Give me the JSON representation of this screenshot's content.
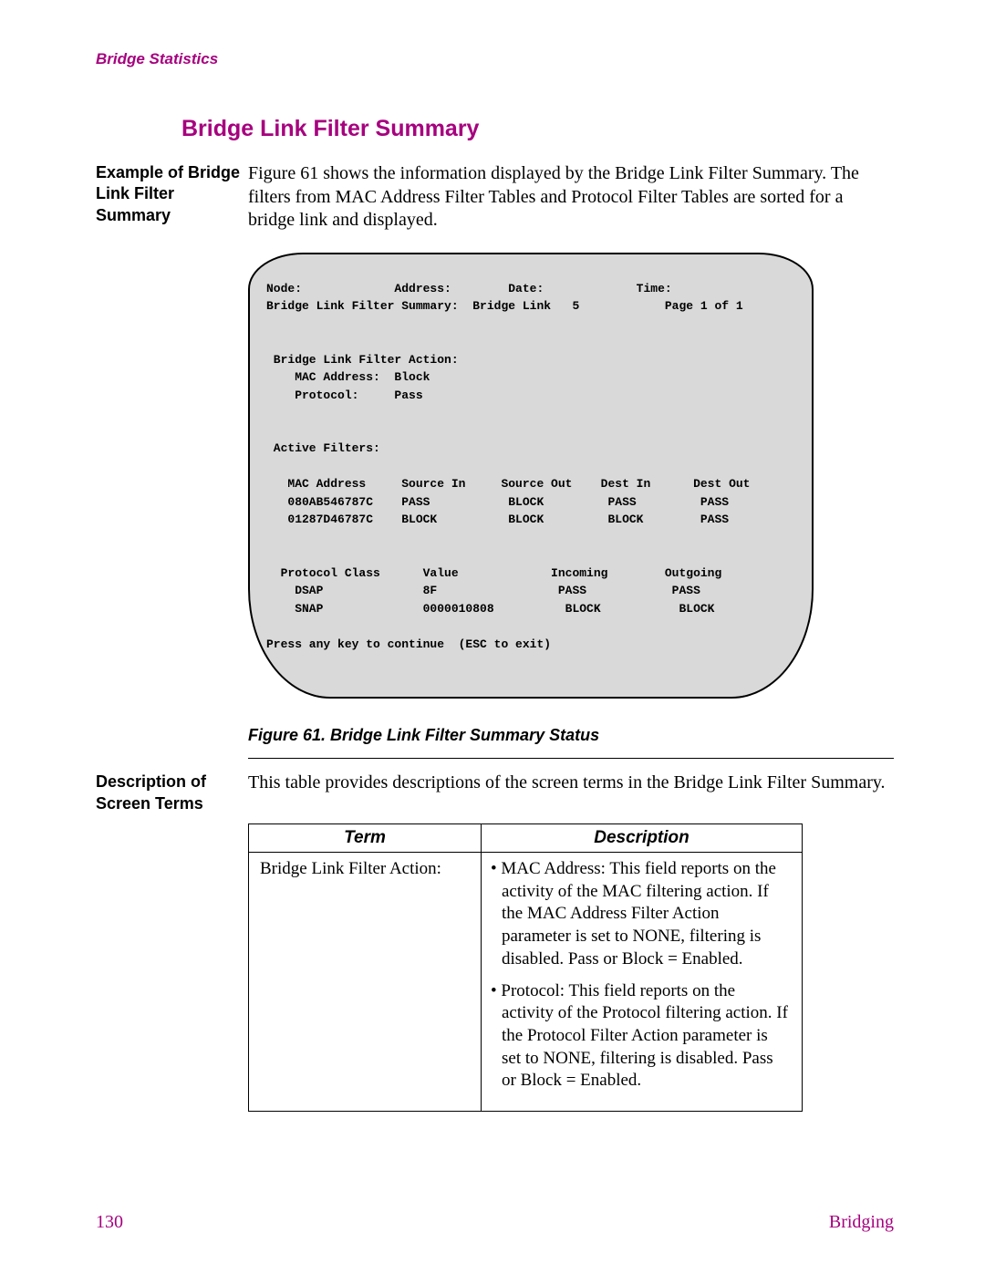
{
  "header": {
    "running_head": "Bridge Statistics"
  },
  "section": {
    "title": "Bridge Link Filter Summary"
  },
  "block1": {
    "label": "Example of Bridge Link Filter Summary",
    "text": "Figure 61 shows the information displayed by the Bridge Link Filter Summary. The filters from MAC Address Filter Tables and Protocol Filter Tables are sorted for a bridge link and displayed."
  },
  "terminal": {
    "text": "Node:             Address:        Date:             Time:\nBridge Link Filter Summary:  Bridge Link   5            Page 1 of 1\n\n\n Bridge Link Filter Action:\n    MAC Address:  Block\n    Protocol:     Pass\n\n\n Active Filters:\n\n   MAC Address     Source In     Source Out    Dest In      Dest Out\n   080AB546787C    PASS           BLOCK         PASS         PASS\n   01287D46787C    BLOCK          BLOCK         BLOCK        PASS\n\n\n  Protocol Class      Value             Incoming        Outgoing\n    DSAP              8F                 PASS            PASS\n    SNAP              0000010808          BLOCK           BLOCK\n\nPress any key to continue  (ESC to exit)"
  },
  "figure": {
    "caption": "Figure 61. Bridge Link Filter Summary Status"
  },
  "block2": {
    "label": "Description of Screen Terms",
    "text": "This table provides descriptions of the screen terms in the Bridge Link Filter Summary."
  },
  "table": {
    "header_term": "Term",
    "header_desc": "Description",
    "row1_term": "Bridge Link Filter Action:",
    "row1_desc1": "• MAC Address: This field reports on the activity of the MAC filtering action. If the MAC Address Filter Action parameter is set to NONE, filtering is disabled. Pass or Block = Enabled.",
    "row1_desc2": "• Protocol: This field reports on the activity of the Protocol filtering action. If the Protocol Filter Action parameter is set to NONE, filtering is disabled. Pass or Block = Enabled."
  },
  "footer": {
    "page_number": "130",
    "chapter": "Bridging"
  },
  "colors": {
    "accent": "#a6007e",
    "terminal_bg": "#d9d9d9",
    "text": "#000000",
    "background": "#ffffff"
  }
}
